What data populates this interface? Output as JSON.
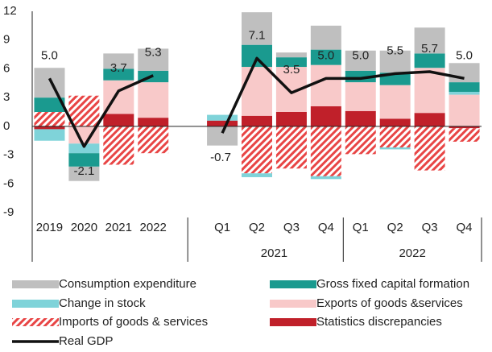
{
  "chart_data": {
    "type": "stacked_bar_line",
    "categories": [
      "2019",
      "2020",
      "2021",
      "2022",
      null,
      "Q1",
      "Q2",
      "Q3",
      "Q4",
      "Q1",
      "Q2",
      "Q3",
      "Q4"
    ],
    "group_labels": [
      "2021",
      "2022"
    ],
    "ylim": [
      -9,
      12
    ],
    "yticks": [
      -9,
      -6,
      -3,
      0,
      3,
      6,
      9,
      12
    ],
    "series": [
      {
        "name": "Consumption expenditure",
        "color": "#bfbfbf",
        "values": [
          3.1,
          -1.5,
          1.6,
          2.3,
          null,
          -2.0,
          3.4,
          0.5,
          2.5,
          2.1,
          2.3,
          2.7,
          2.0
        ]
      },
      {
        "name": "Gross fixed capital formation",
        "color": "#1a9a8f",
        "values": [
          1.5,
          -1.4,
          1.2,
          1.2,
          null,
          0,
          2.3,
          1.0,
          1.6,
          1.2,
          1.3,
          1.5,
          1.0
        ]
      },
      {
        "name": "Change in stock",
        "color": "#7fd3d9",
        "values": [
          -1.2,
          -1.0,
          0,
          0,
          null,
          0.6,
          -0.4,
          0,
          -0.3,
          0,
          -0.2,
          0,
          0.3
        ]
      },
      {
        "name": "Exports of goods &services",
        "color": "#f8c9c9",
        "values": [
          0,
          -1.8,
          3.5,
          3.7,
          null,
          0,
          5.1,
          4.7,
          4.3,
          3.0,
          3.5,
          4.7,
          3.3
        ]
      },
      {
        "name": "Imports of goods & services",
        "color": "#e84545",
        "pattern": "hatch",
        "values": [
          1.5,
          3.2,
          -4.0,
          -2.8,
          null,
          0,
          -4.9,
          -4.4,
          -5.2,
          -2.9,
          -2.2,
          -4.6,
          -1.4
        ]
      },
      {
        "name": "Statistics discrepancies",
        "color": "#c0202a",
        "values": [
          -0.3,
          0,
          1.3,
          0.9,
          null,
          0.6,
          1.1,
          1.5,
          2.1,
          1.6,
          0.8,
          1.4,
          -0.2
        ]
      }
    ],
    "line": {
      "name": "Real GDP",
      "color": "#111111",
      "values": [
        5.0,
        -2.1,
        3.7,
        5.3,
        null,
        -0.7,
        7.1,
        3.5,
        5.0,
        5.0,
        5.5,
        5.7,
        5.0
      ],
      "value_labels": [
        "5.0",
        "-2.1",
        "3.7",
        "5.3",
        null,
        "-0.7",
        "7.1",
        "3.5",
        "5.0",
        "5.0",
        "5.5",
        "5.7",
        "5.0"
      ]
    }
  }
}
